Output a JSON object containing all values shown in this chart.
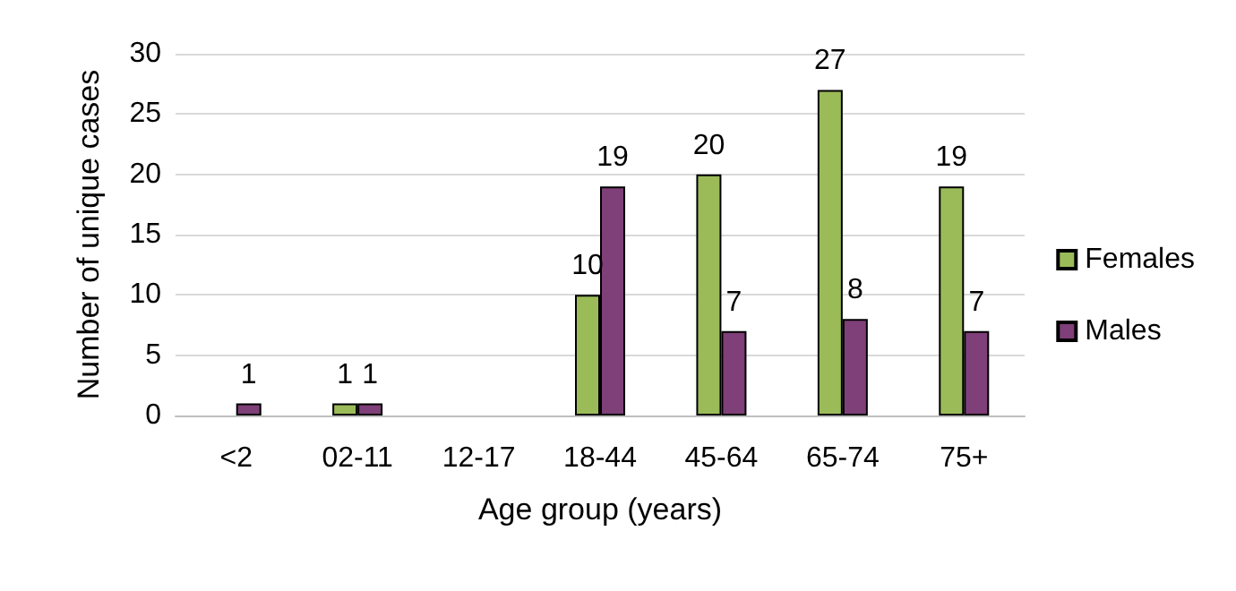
{
  "chart_data": {
    "type": "bar",
    "xlabel": "Age group (years)",
    "ylabel": "Number of unique cases",
    "categories": [
      "<2",
      "02-11",
      "12-17",
      "18-44",
      "45-64",
      "65-74",
      "75+"
    ],
    "series": [
      {
        "name": "Females",
        "color": "#9bbb59",
        "values": [
          null,
          1,
          null,
          10,
          20,
          27,
          19
        ],
        "value_labels": [
          null,
          "1",
          null,
          "10",
          "20",
          "27",
          "19"
        ]
      },
      {
        "name": "Males",
        "color": "#7f3f78",
        "values": [
          1,
          1,
          null,
          19,
          7,
          8,
          7
        ],
        "value_labels": [
          "1",
          "1",
          null,
          "19",
          "7",
          "8",
          "7"
        ]
      }
    ],
    "ylim": [
      0,
      30
    ],
    "yticks": [
      0,
      5,
      10,
      15,
      20,
      25,
      30
    ],
    "grid": "y",
    "legend": "right"
  }
}
